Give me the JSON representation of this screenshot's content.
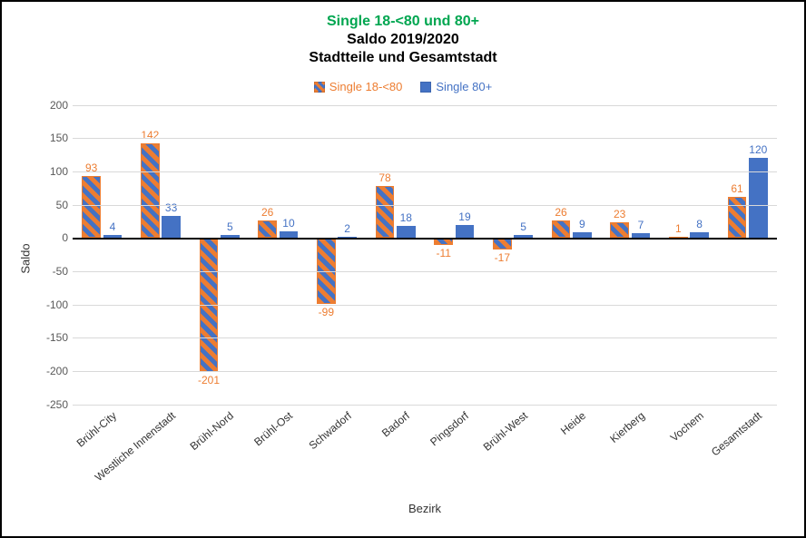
{
  "chart": {
    "title_green": "Single 18-<80 und 80+",
    "title_line2": "Saldo 2019/2020",
    "title_line3": "Stadtteile und Gesamtstadt",
    "title_green_color": "#00a650",
    "title_black_color": "#000000",
    "title_fontsize": 16,
    "y_label": "Saldo",
    "x_label": "Bezirk",
    "ylim_min": -250,
    "ylim_max": 200,
    "ytick_step": 50,
    "grid_color": "#d9d9d9",
    "background_color": "#ffffff",
    "series": [
      {
        "name": "Single 18-<80",
        "stripe1": "#ed7d31",
        "stripe2": "#4472c4",
        "label_color": "#ed7d31",
        "outline": "#ed7d31"
      },
      {
        "name": "Single 80+",
        "stripe1": "#4472c4",
        "stripe2": "#4472c4",
        "label_color": "#4472c4",
        "outline": "#4472c4"
      }
    ],
    "categories": [
      "Brühl-City",
      "Westliche Innenstadt",
      "Brühl-Nord",
      "Brühl-Ost",
      "Schwadorf",
      "Badorf",
      "Pingsdorf",
      "Brühl-West",
      "Heide",
      "Kierberg",
      "Vochem",
      "Gesamtstadt"
    ],
    "data": {
      "Single 18-<80": [
        93,
        142,
        -201,
        26,
        -99,
        78,
        -11,
        -17,
        26,
        23,
        1,
        61
      ],
      "Single 80+": [
        4,
        33,
        5,
        10,
        2,
        18,
        19,
        5,
        9,
        7,
        8,
        120
      ]
    },
    "bar_width_ratio": 0.32,
    "label_fontsize": 12
  }
}
